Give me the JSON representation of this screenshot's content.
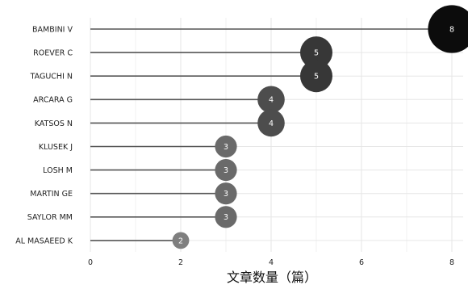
{
  "chart_data": {
    "type": "scatter",
    "subtype": "lollipop",
    "categories": [
      "BAMBINI V",
      "ROEVER C",
      "TAGUCHI N",
      "ARCARA G",
      "KATSOS N",
      "KLUSEK J",
      "LOSH M",
      "MARTIN GE",
      "SAYLOR MM",
      "AL MASAEED K"
    ],
    "values": [
      8,
      5,
      5,
      4,
      4,
      3,
      3,
      3,
      3,
      2
    ],
    "data_labels": [
      "8",
      "5",
      "5",
      "4",
      "4",
      "3",
      "3",
      "3",
      "3",
      "2"
    ],
    "xlabel": "文章数量（篇）",
    "ylabel": "",
    "xlim": [
      0,
      8
    ],
    "x_ticks": [
      "0",
      "2",
      "4",
      "6",
      "8"
    ],
    "grid": true,
    "point_color_scale": {
      "2": "#7f7f7f",
      "3": "#6a6a6a",
      "4": "#4d4d4d",
      "5": "#373737",
      "8": "#0c0c0c"
    }
  }
}
